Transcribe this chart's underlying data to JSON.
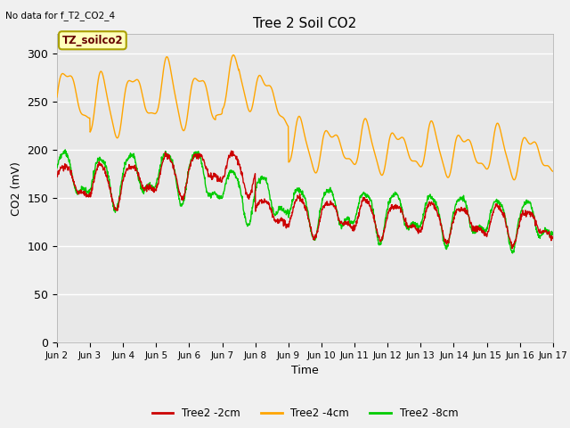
{
  "title": "Tree 2 Soil CO2",
  "top_left_text": "No data for f_T2_CO2_4",
  "annotation_text": "TZ_soilco2",
  "xlabel": "Time",
  "ylabel": "CO2 (mV)",
  "ylim": [
    0,
    320
  ],
  "yticks": [
    0,
    50,
    100,
    150,
    200,
    250,
    300
  ],
  "fig_bg": "#f0f0f0",
  "plot_bg": "#e8e8e8",
  "grid_color": "white",
  "line_colors": {
    "red": "#cc0000",
    "orange": "#ffa500",
    "green": "#00cc00"
  },
  "legend_labels": [
    "Tree2 -2cm",
    "Tree2 -4cm",
    "Tree2 -8cm"
  ],
  "xtick_labels": [
    "Jun 2",
    "Jun 3",
    "Jun 4",
    "Jun 5",
    "Jun 6",
    "Jun 7",
    "Jun 8",
    "Jun 9",
    "Jun 10",
    "Jun 11",
    "Jun 12",
    "Jun 13",
    "Jun 14",
    "Jun 15",
    "Jun 16",
    "Jun 17"
  ],
  "n_points": 1500
}
